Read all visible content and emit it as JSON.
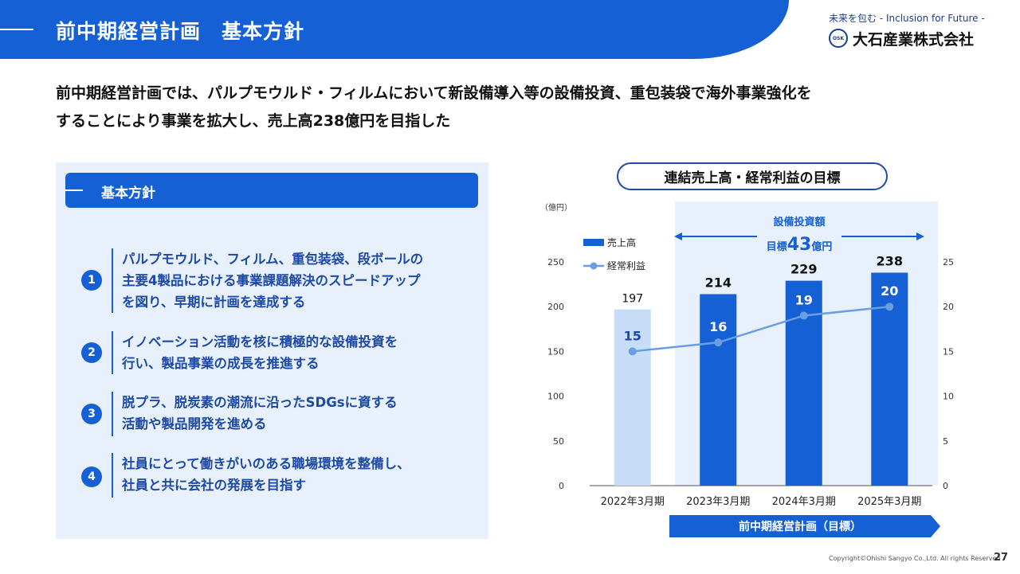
{
  "header": {
    "title": "前中期経営計画　基本方針"
  },
  "logo": {
    "tagline": "未来を包む - Inclusion for Future -",
    "company": "大石産業株式会社",
    "mark": "OSK"
  },
  "lead": {
    "line1": "前中期経営計画では、パルプモウルド・フィルムにおいて新設備導入等の設備投資、重包装袋で海外事業強化を",
    "line2": "することにより事業を拡大し、売上高238億円を目指した"
  },
  "policy": {
    "heading": "基本方針",
    "items": [
      {
        "num": "1",
        "lines": [
          "パルプモウルド、フィルム、重包装袋、段ボールの",
          "主要4製品における事業課題解決のスピードアップ",
          "を図り、早期に計画を達成する"
        ]
      },
      {
        "num": "2",
        "lines": [
          "イノベーション活動を核に積極的な設備投資を",
          "行い、製品事業の成長を推進する"
        ]
      },
      {
        "num": "3",
        "lines": [
          "脱プラ、脱炭素の潮流に沿ったSDGsに資する",
          "活動や製品開発を進める"
        ]
      },
      {
        "num": "4",
        "lines": [
          "社員にとって働きがいのある職場環境を整備し、",
          "社員と共に会社の発展を目指す"
        ]
      }
    ]
  },
  "chart": {
    "title": "連結売上高・経常利益の目標",
    "unit": "（億円）",
    "capex_label": "設備投資額",
    "capex_prefix": "目標",
    "capex_value": "43",
    "capex_suffix": "億円",
    "plan_label": "前中期経営計画（目標）"
  },
  "chart_data": {
    "type": "bar",
    "categories": [
      "2022年3月期",
      "2023年3月期",
      "2024年3月期",
      "2025年3月期"
    ],
    "series": [
      {
        "name": "売上高",
        "type": "bar",
        "axis": "left",
        "values": [
          197,
          214,
          229,
          238
        ]
      },
      {
        "name": "経常利益",
        "type": "line",
        "axis": "right",
        "values": [
          15,
          16,
          19,
          20
        ]
      }
    ],
    "ylim_left": [
      0,
      250
    ],
    "yticks_left": [
      "0",
      "50",
      "100",
      "150",
      "200",
      "250"
    ],
    "ylim_right": [
      0,
      25
    ],
    "yticks_right": [
      "0",
      "5",
      "10",
      "15",
      "20",
      "25"
    ],
    "legend_position": "top-left",
    "colors": {
      "bar_actual": "#c6dcf7",
      "bar_target": "#1560d4",
      "line": "#6a9ee0",
      "highlight_bg": "#e8f0fb"
    }
  },
  "footer": {
    "copyright": "Copyright©Ohishi Sangyo Co.,Ltd. All rights Reserved",
    "page": "27"
  }
}
